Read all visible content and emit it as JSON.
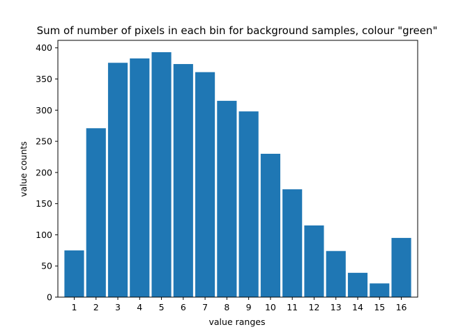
{
  "chart_data": {
    "type": "bar",
    "title": "Sum of number of pixels in each bin for background samples, colour \"green\"",
    "xlabel": "value ranges",
    "ylabel": "value counts",
    "categories": [
      "1",
      "2",
      "3",
      "4",
      "5",
      "6",
      "7",
      "8",
      "9",
      "10",
      "11",
      "12",
      "13",
      "14",
      "15",
      "16"
    ],
    "values": [
      75,
      271,
      376,
      383,
      393,
      374,
      361,
      315,
      298,
      230,
      173,
      115,
      74,
      39,
      22,
      95
    ],
    "ylim": [
      0,
      412
    ],
    "yticks": [
      0,
      50,
      100,
      150,
      200,
      250,
      300,
      350,
      400
    ],
    "color": "#1f77b4",
    "grid": false
  }
}
